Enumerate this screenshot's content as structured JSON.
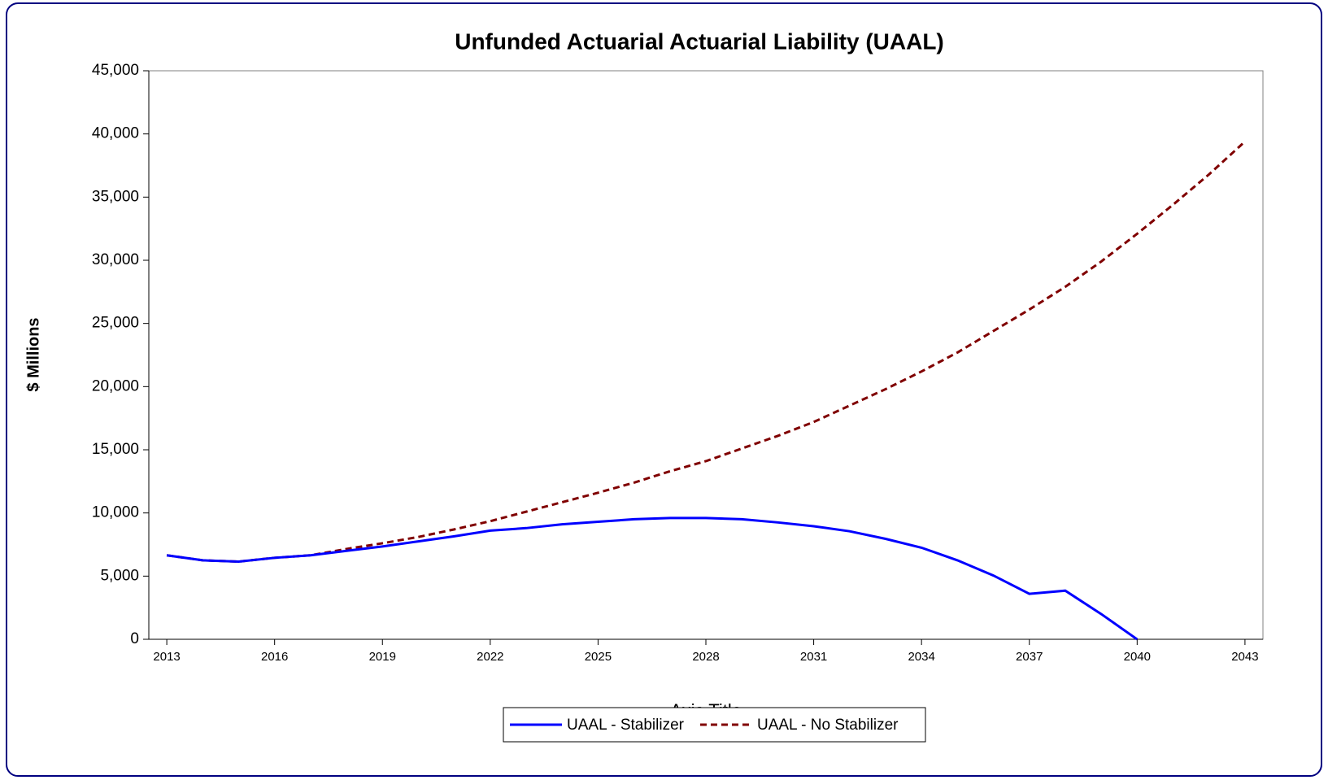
{
  "chart_data": {
    "type": "line",
    "title": "Unfunded Actuarial Actuarial Liability (UAAL)",
    "x_label": "Axis Title",
    "y_label": "$ Millions",
    "x": [
      2013,
      2014,
      2015,
      2016,
      2017,
      2018,
      2019,
      2020,
      2021,
      2022,
      2023,
      2024,
      2025,
      2026,
      2027,
      2028,
      2029,
      2030,
      2031,
      2032,
      2033,
      2034,
      2035,
      2036,
      2037,
      2038,
      2039,
      2040,
      2041,
      2042,
      2043
    ],
    "xlim": [
      2012.5,
      2043.5
    ],
    "xticks": [
      2013,
      2016,
      2019,
      2022,
      2025,
      2028,
      2031,
      2034,
      2037,
      2040,
      2043
    ],
    "ylim": [
      0,
      45000
    ],
    "yticks": [
      0,
      {
        "value": 5000,
        "label": "5,000"
      },
      {
        "value": 10000,
        "label": "10,000"
      },
      {
        "value": 15000,
        "label": "15,000"
      },
      {
        "value": 20000,
        "label": "20,000"
      },
      {
        "value": 25000,
        "label": "25,000"
      },
      {
        "value": 30000,
        "label": "30,000"
      },
      {
        "value": 35000,
        "label": "35,000"
      },
      {
        "value": 40000,
        "label": "40,000"
      },
      {
        "value": 45000,
        "label": "45,000"
      }
    ],
    "legend": "bottom",
    "series": [
      {
        "name": "UAAL - Stabilizer",
        "color": "#0000ff",
        "dash": false,
        "values": [
          6650,
          6250,
          6150,
          6450,
          6650,
          7000,
          7350,
          7750,
          8150,
          8600,
          8800,
          9100,
          9300,
          9500,
          9600,
          9600,
          9500,
          9250,
          8950,
          8550,
          7950,
          7250,
          6250,
          5050,
          3600,
          3850,
          2000,
          0,
          null,
          null,
          null
        ]
      },
      {
        "name": "UAAL - No Stabilizer",
        "color": "#800000",
        "dash": true,
        "values": [
          6650,
          6250,
          6150,
          6450,
          6650,
          7150,
          7600,
          8100,
          8700,
          9350,
          10100,
          10850,
          11600,
          12400,
          13300,
          14100,
          15100,
          16100,
          17200,
          18500,
          19800,
          21200,
          22700,
          24400,
          26100,
          27900,
          29900,
          32100,
          34400,
          36800,
          39400
        ]
      }
    ]
  }
}
